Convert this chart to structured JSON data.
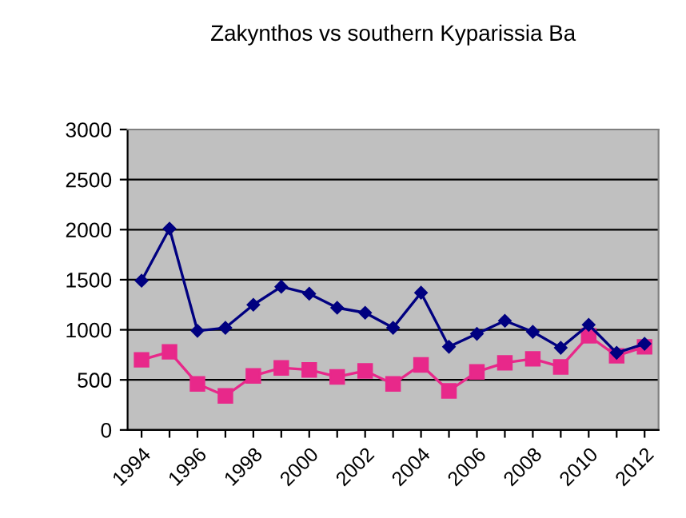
{
  "chart_data": {
    "type": "line",
    "title": "Zakynthos vs southern Kyparissia Ba",
    "categories": [
      "1994",
      null,
      "1996",
      null,
      "1998",
      null,
      "2000",
      null,
      "2002",
      null,
      "2004",
      null,
      "2006",
      null,
      "2008",
      null,
      "2010",
      null,
      "2012"
    ],
    "series": [
      {
        "color": "#000080",
        "marker": "diamond",
        "values": [
          1490,
          2010,
          990,
          1020,
          1250,
          1430,
          1360,
          1220,
          1170,
          1020,
          1370,
          830,
          960,
          1090,
          980,
          820,
          1050,
          770,
          860
        ]
      },
      {
        "color": "#e8288a",
        "marker": "square",
        "values": [
          700,
          780,
          460,
          340,
          540,
          620,
          600,
          530,
          590,
          460,
          650,
          390,
          580,
          670,
          710,
          630,
          940,
          740,
          830
        ]
      }
    ],
    "ylim": [
      0,
      3000
    ],
    "yticks": [
      0,
      500,
      1000,
      1500,
      2000,
      2500,
      3000
    ],
    "grid": "y",
    "legend": false
  }
}
